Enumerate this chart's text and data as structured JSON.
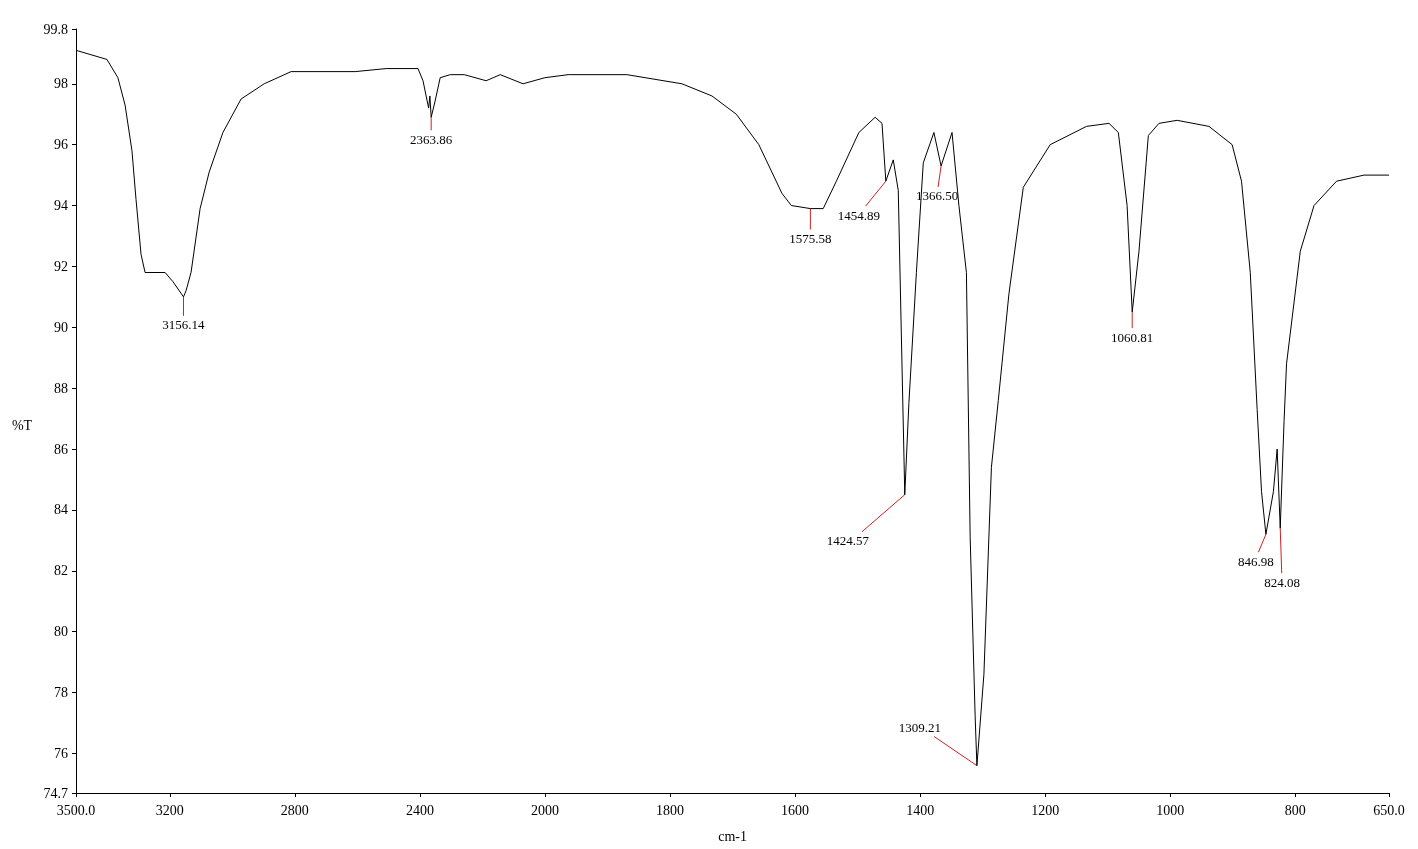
{
  "chart_data": [
    {
      "type": "line",
      "ylabel": "%T",
      "xlim": [
        3500,
        2000
      ],
      "ylim": [
        74.7,
        99.8
      ],
      "xticks": [
        {
          "value": 3500,
          "label": "3500.0"
        },
        3200,
        2800,
        2400
      ],
      "yticks": [
        74.7,
        76,
        78,
        80,
        82,
        84,
        86,
        88,
        90,
        92,
        94,
        96,
        98,
        99.8
      ],
      "grid": false,
      "marker": "none",
      "line_style": "solid",
      "series": [
        {
          "color": "#000000",
          "x": [
            3500,
            3401,
            3366,
            3343,
            3321,
            3308,
            3292,
            3279,
            3215,
            3190,
            3156.14,
            3148,
            3132,
            3103,
            3074,
            3030,
            2972,
            2898,
            2812,
            2726,
            2607,
            2508,
            2406,
            2390,
            2372,
            2368,
            2363.86,
            2352,
            2335,
            2303,
            2258,
            2188,
            2143,
            2070,
            2000
          ],
          "values": [
            99.1,
            98.8,
            98.2,
            97.3,
            95.8,
            94.2,
            92.4,
            91.8,
            91.8,
            91.5,
            91.0,
            91.2,
            91.8,
            93.9,
            95.1,
            96.4,
            97.5,
            98.0,
            98.4,
            98.4,
            98.4,
            98.5,
            98.5,
            98.1,
            97.2,
            97.6,
            96.9,
            97.4,
            98.2,
            98.3,
            98.3,
            98.1,
            98.3,
            98.0,
            98.2
          ]
        }
      ],
      "annotations": [
        {
          "text": "3156.14",
          "x": 3156.14,
          "y": 91.0
        },
        {
          "text": "2363.86",
          "x": 2363.86,
          "y": 96.9
        }
      ]
    },
    {
      "type": "line",
      "xlabel": "cm-1",
      "xlim": [
        2000,
        650
      ],
      "ylim": [
        74.7,
        99.8
      ],
      "xticks": [
        2000,
        1800,
        1600,
        1400,
        1200,
        1000,
        800,
        {
          "value": 650,
          "label": "650.0"
        }
      ],
      "yticks": [
        74.7,
        76,
        78,
        80,
        82,
        84,
        86,
        88,
        90,
        92,
        94,
        96,
        98,
        99.8
      ],
      "tick_labels": "x",
      "grid": false,
      "marker": "none",
      "line_style": "solid",
      "series": [
        {
          "color": "#000000",
          "x": [
            2000,
            1963,
            1869,
            1781,
            1733,
            1694,
            1658,
            1621,
            1606,
            1575.58,
            1555,
            1534,
            1498,
            1472,
            1461,
            1454.89,
            1443,
            1435,
            1424.57,
            1418,
            1406,
            1395,
            1378,
            1366.5,
            1349,
            1338,
            1326,
            1320,
            1312,
            1309.21,
            1298,
            1286,
            1275,
            1258,
            1235,
            1192,
            1134,
            1098,
            1083,
            1069,
            1060.81,
            1050,
            1035,
            1018,
            989,
            938,
            901,
            886,
            872,
            861,
            854,
            846.98,
            835,
            829,
            824.08,
            818,
            814,
            792,
            770,
            734,
            690,
            650
          ],
          "values": [
            98.2,
            98.3,
            98.3,
            98.0,
            97.6,
            97.0,
            96.0,
            94.4,
            94.0,
            93.9,
            93.9,
            94.8,
            96.4,
            96.9,
            96.7,
            94.8,
            95.5,
            94.5,
            84.5,
            87.5,
            91.8,
            95.4,
            96.4,
            95.3,
            96.4,
            94.0,
            91.8,
            83.1,
            77.2,
            75.6,
            78.6,
            85.4,
            87.6,
            91.1,
            94.6,
            96.0,
            96.6,
            96.7,
            96.4,
            94.0,
            90.5,
            92.5,
            96.3,
            96.7,
            96.8,
            96.6,
            96.0,
            94.8,
            91.8,
            87.3,
            84.6,
            83.2,
            84.6,
            86.0,
            83.4,
            86.9,
            88.8,
            92.5,
            94.0,
            94.8,
            95.0,
            95.0
          ]
        }
      ],
      "annotations": [
        {
          "text": "1575.58",
          "x": 1575.58,
          "y": 93.9
        },
        {
          "text": "1454.89",
          "x": 1454.89,
          "y": 94.8
        },
        {
          "text": "1366.50",
          "x": 1366.5,
          "y": 95.3
        },
        {
          "text": "1424.57",
          "x": 1424.57,
          "y": 84.5
        },
        {
          "text": "1309.21",
          "x": 1309.21,
          "y": 75.6
        },
        {
          "text": "1060.81",
          "x": 1060.81,
          "y": 90.5
        },
        {
          "text": "846.98",
          "x": 846.98,
          "y": 83.2
        },
        {
          "text": "824.08",
          "x": 824.08,
          "y": 83.4
        }
      ]
    }
  ]
}
